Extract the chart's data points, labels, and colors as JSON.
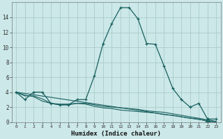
{
  "title": "",
  "xlabel": "Humidex (Indice chaleur)",
  "bg_color": "#cce8e8",
  "grid_color": "#aacccc",
  "line_color": "#1a6060",
  "xlim": [
    -0.5,
    23.5
  ],
  "ylim": [
    0,
    16
  ],
  "yticks": [
    0,
    2,
    4,
    6,
    8,
    10,
    12,
    14
  ],
  "xticks": [
    0,
    1,
    2,
    3,
    4,
    5,
    6,
    7,
    8,
    9,
    10,
    11,
    12,
    13,
    14,
    15,
    16,
    17,
    18,
    19,
    20,
    21,
    22,
    23
  ],
  "curve1_x": [
    0,
    1,
    2,
    3,
    4,
    5,
    6,
    7,
    8,
    9,
    10,
    11,
    12,
    13,
    14,
    15,
    16,
    17,
    18,
    19,
    20,
    21,
    22,
    23
  ],
  "curve1_y": [
    4.0,
    3.0,
    4.0,
    4.0,
    2.5,
    2.3,
    2.3,
    3.0,
    3.0,
    6.2,
    10.5,
    13.2,
    15.3,
    15.3,
    13.8,
    10.5,
    10.4,
    7.5,
    4.5,
    3.0,
    2.0,
    2.5,
    0.4,
    0.4
  ],
  "curve2_x": [
    0,
    1,
    2,
    3,
    4,
    5,
    6,
    7,
    8,
    9,
    10,
    11,
    12,
    13,
    14,
    15,
    16,
    17,
    18,
    19,
    20,
    21,
    22,
    23
  ],
  "curve2_y": [
    4.0,
    3.5,
    3.5,
    3.1,
    2.5,
    2.4,
    2.4,
    2.5,
    2.5,
    2.3,
    2.1,
    2.0,
    1.9,
    1.8,
    1.7,
    1.5,
    1.4,
    1.3,
    1.1,
    0.9,
    0.7,
    0.5,
    0.3,
    0.1
  ],
  "curve3_x": [
    0,
    1,
    2,
    3,
    4,
    5,
    6,
    7,
    8,
    9,
    10,
    11,
    12,
    13,
    14,
    15,
    16,
    17,
    18,
    19,
    20,
    21,
    22,
    23
  ],
  "curve3_y": [
    4.0,
    3.6,
    3.4,
    2.8,
    2.5,
    2.3,
    2.3,
    2.5,
    2.4,
    2.1,
    1.9,
    1.8,
    1.6,
    1.5,
    1.4,
    1.3,
    1.2,
    1.0,
    0.9,
    0.7,
    0.5,
    0.4,
    0.1,
    0.0
  ],
  "curve4_x": [
    0,
    23
  ],
  "curve4_y": [
    4.0,
    0.0
  ],
  "triangle_x": 22,
  "triangle_y": 0.3
}
